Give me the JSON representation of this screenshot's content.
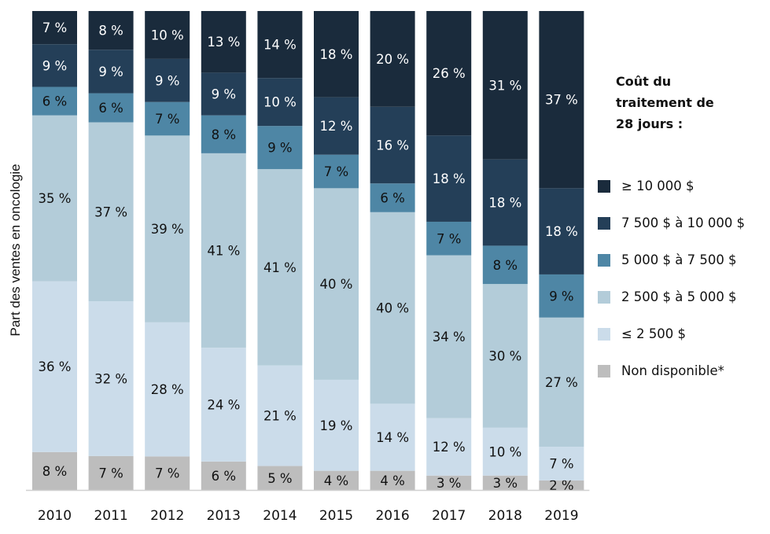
{
  "chart_data": {
    "type": "bar",
    "stacked": true,
    "title": "",
    "xlabel": "",
    "ylabel": "Part des ventes en oncologie",
    "ylim": [
      0,
      100
    ],
    "grid": false,
    "categories": [
      "2010",
      "2011",
      "2012",
      "2013",
      "2014",
      "2015",
      "2016",
      "2017",
      "2018",
      "2019"
    ],
    "series": [
      {
        "name": "Non disponible*",
        "color": "#bdbdbd",
        "label_color": "#111111",
        "values": [
          8,
          7,
          7,
          6,
          5,
          4,
          4,
          3,
          3,
          2
        ]
      },
      {
        "name": "≤ 2 500 $",
        "color": "#cbdcea",
        "label_color": "#111111",
        "values": [
          36,
          32,
          28,
          24,
          21,
          19,
          14,
          12,
          10,
          7
        ]
      },
      {
        "name": "2 500 $ à 5 000 $",
        "color": "#b3ccd9",
        "label_color": "#111111",
        "values": [
          35,
          37,
          39,
          41,
          41,
          40,
          40,
          34,
          30,
          27
        ]
      },
      {
        "name": "5 000 $ à 7 500 $",
        "color": "#4e86a5",
        "label_color": "#111111",
        "values": [
          6,
          6,
          7,
          8,
          9,
          7,
          6,
          7,
          8,
          9
        ]
      },
      {
        "name": "7 500 $ à 10 000 $",
        "color": "#243f58",
        "label_color": "#ffffff",
        "values": [
          9,
          9,
          9,
          9,
          10,
          12,
          16,
          18,
          18,
          18
        ]
      },
      {
        "name": "≥ 10 000 $",
        "color": "#1a2b3c",
        "label_color": "#ffffff",
        "values": [
          7,
          8,
          10,
          13,
          14,
          18,
          20,
          26,
          31,
          37
        ]
      }
    ],
    "value_suffix": " %",
    "legend": {
      "title_lines": [
        "Coût du",
        "traitement de",
        "28 jours :"
      ],
      "position": "right"
    }
  }
}
